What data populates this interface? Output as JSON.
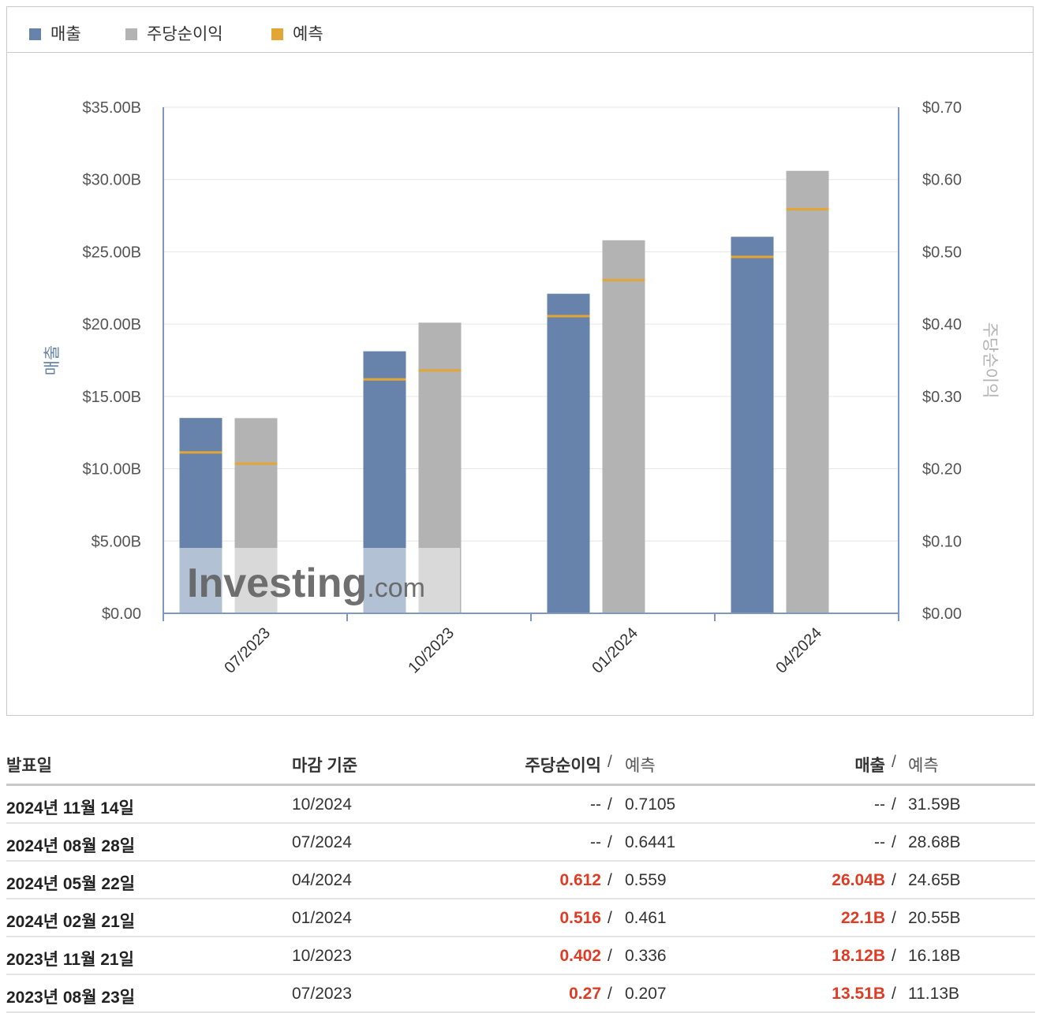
{
  "legend": {
    "revenue": "매출",
    "eps": "주당순이익",
    "forecast": "예측"
  },
  "colors": {
    "revenue": "#6783ab",
    "eps": "#b3b3b3",
    "forecast": "#e3a634",
    "beat": "#e03b24"
  },
  "watermark": "Investing.com",
  "chart_data": {
    "type": "bar",
    "categories": [
      "07/2023",
      "10/2023",
      "01/2024",
      "04/2024"
    ],
    "series": [
      {
        "name": "매출",
        "axis": "left",
        "values": [
          13.51,
          18.12,
          22.1,
          26.04
        ],
        "forecast": [
          11.13,
          16.18,
          20.55,
          24.65
        ]
      },
      {
        "name": "주당순이익",
        "axis": "right",
        "values": [
          0.27,
          0.402,
          0.516,
          0.612
        ],
        "forecast": [
          0.207,
          0.336,
          0.461,
          0.559
        ]
      }
    ],
    "ylabel": "매출",
    "y2label": "주당순이익",
    "ylim": [
      0,
      35
    ],
    "y2lim": [
      0,
      0.7
    ],
    "yticks": [
      0,
      5,
      10,
      15,
      20,
      25,
      30,
      35
    ],
    "ytick_labels": [
      "$0.00",
      "$5.00B",
      "$10.00B",
      "$15.00B",
      "$20.00B",
      "$25.00B",
      "$30.00B",
      "$35.00B"
    ],
    "y2ticks": [
      0,
      0.1,
      0.2,
      0.3,
      0.4,
      0.5,
      0.6,
      0.7
    ],
    "y2tick_labels": [
      "$0.00",
      "$0.10",
      "$0.20",
      "$0.30",
      "$0.40",
      "$0.50",
      "$0.60",
      "$0.70"
    ],
    "grid": true,
    "legend_position": "top-left"
  },
  "table": {
    "headers": {
      "date": "발표일",
      "period": "마감 기준",
      "eps": "주당순이익",
      "eps_sep": "/",
      "eps_forecast": "예측",
      "revenue": "매출",
      "rev_sep": "/",
      "rev_forecast": "예측"
    },
    "rows": [
      {
        "date": "2024년 11월 14일",
        "period": "10/2024",
        "eps": "--",
        "eps_forecast": "0.7105",
        "revenue": "--",
        "rev_forecast": "31.59B",
        "beat": false
      },
      {
        "date": "2024년 08월 28일",
        "period": "07/2024",
        "eps": "--",
        "eps_forecast": "0.6441",
        "revenue": "--",
        "rev_forecast": "28.68B",
        "beat": false
      },
      {
        "date": "2024년 05월 22일",
        "period": "04/2024",
        "eps": "0.612",
        "eps_forecast": "0.559",
        "revenue": "26.04B",
        "rev_forecast": "24.65B",
        "beat": true
      },
      {
        "date": "2024년 02월 21일",
        "period": "01/2024",
        "eps": "0.516",
        "eps_forecast": "0.461",
        "revenue": "22.1B",
        "rev_forecast": "20.55B",
        "beat": true
      },
      {
        "date": "2023년 11월 21일",
        "period": "10/2023",
        "eps": "0.402",
        "eps_forecast": "0.336",
        "revenue": "18.12B",
        "rev_forecast": "16.18B",
        "beat": true
      },
      {
        "date": "2023년 08월 23일",
        "period": "07/2023",
        "eps": "0.27",
        "eps_forecast": "0.207",
        "revenue": "13.51B",
        "rev_forecast": "11.13B",
        "beat": true
      }
    ]
  }
}
